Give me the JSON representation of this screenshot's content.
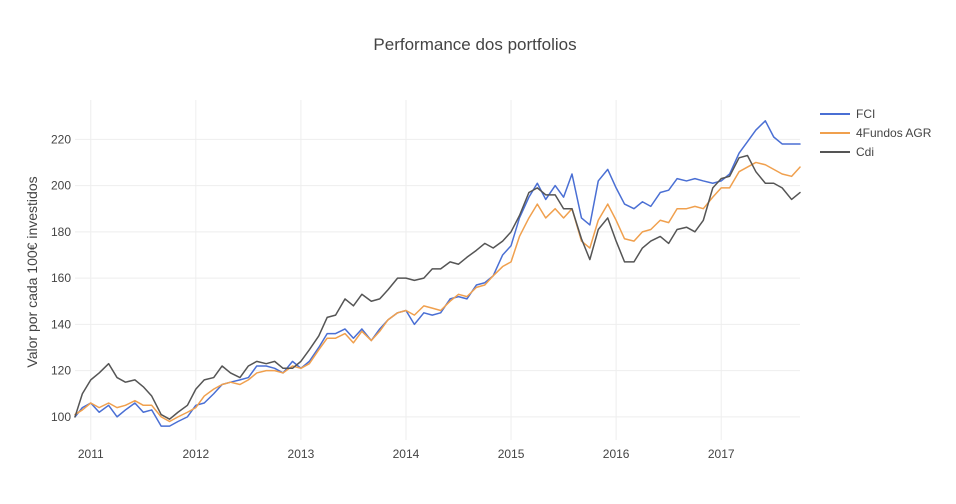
{
  "chart_data": {
    "type": "line",
    "title": "Performance dos portfolios",
    "xlabel": "",
    "ylabel": "Valor por cada 100€ investidos",
    "x_tick_labels": [
      "2011",
      "2012",
      "2013",
      "2014",
      "2015",
      "2016",
      "2017"
    ],
    "x_tick_positions": [
      2011,
      2012,
      2013,
      2014,
      2015,
      2016,
      2017
    ],
    "xlim": [
      2010.85,
      2017.75
    ],
    "y_ticks": [
      100,
      120,
      140,
      160,
      180,
      200,
      220
    ],
    "ylim": [
      90,
      237
    ],
    "legend_position": "top-right",
    "x": [
      2010.85,
      2010.92,
      2011.0,
      2011.08,
      2011.17,
      2011.25,
      2011.33,
      2011.42,
      2011.5,
      2011.58,
      2011.67,
      2011.75,
      2011.83,
      2011.92,
      2012.0,
      2012.08,
      2012.17,
      2012.25,
      2012.33,
      2012.42,
      2012.5,
      2012.58,
      2012.67,
      2012.75,
      2012.83,
      2012.92,
      2013.0,
      2013.08,
      2013.17,
      2013.25,
      2013.33,
      2013.42,
      2013.5,
      2013.58,
      2013.67,
      2013.75,
      2013.83,
      2013.92,
      2014.0,
      2014.08,
      2014.17,
      2014.25,
      2014.33,
      2014.42,
      2014.5,
      2014.58,
      2014.67,
      2014.75,
      2014.83,
      2014.92,
      2015.0,
      2015.08,
      2015.17,
      2015.25,
      2015.33,
      2015.42,
      2015.5,
      2015.58,
      2015.67,
      2015.75,
      2015.83,
      2015.92,
      2016.0,
      2016.08,
      2016.17,
      2016.25,
      2016.33,
      2016.42,
      2016.5,
      2016.58,
      2016.67,
      2016.75,
      2016.83,
      2016.92,
      2017.0,
      2017.08,
      2017.17,
      2017.25,
      2017.33,
      2017.42,
      2017.5,
      2017.58,
      2017.67,
      2017.75
    ],
    "series": [
      {
        "name": "FCI",
        "color": "#4a6fd4",
        "values": [
          100,
          104,
          106,
          102,
          105,
          100,
          103,
          106,
          102,
          103,
          96,
          96,
          98,
          100,
          105,
          106,
          110,
          114,
          115,
          116,
          117,
          122,
          122,
          121,
          119,
          124,
          121,
          124,
          130,
          136,
          136,
          138,
          134,
          138,
          133,
          138,
          142,
          145,
          146,
          140,
          145,
          144,
          145,
          151,
          152,
          151,
          157,
          158,
          161,
          170,
          174,
          186,
          195,
          201,
          194,
          200,
          195,
          205,
          186,
          183,
          202,
          207,
          199,
          192,
          190,
          193,
          191,
          197,
          198,
          203,
          202,
          203,
          202,
          201,
          202,
          205,
          214,
          219,
          224,
          228,
          221,
          218,
          218,
          218
        ]
      },
      {
        "name": "4Fundos AGR",
        "color": "#f0a04e",
        "values": [
          101,
          103,
          106,
          104,
          106,
          104,
          105,
          107,
          105,
          105,
          100,
          98,
          100,
          102,
          104,
          109,
          112,
          114,
          115,
          114,
          116,
          119,
          120,
          120,
          119,
          122,
          121,
          123,
          129,
          134,
          134,
          136,
          132,
          137,
          133,
          137,
          142,
          145,
          146,
          144,
          148,
          147,
          146,
          150,
          153,
          152,
          156,
          157,
          161,
          165,
          167,
          178,
          186,
          192,
          186,
          190,
          186,
          190,
          176,
          173,
          185,
          192,
          185,
          177,
          176,
          180,
          181,
          185,
          184,
          190,
          190,
          191,
          190,
          195,
          199,
          199,
          206,
          208,
          210,
          209,
          207,
          205,
          204,
          208
        ]
      },
      {
        "name": "Cdi",
        "color": "#555555",
        "values": [
          100,
          110,
          116,
          119,
          123,
          117,
          115,
          116,
          113,
          109,
          101,
          99,
          102,
          105,
          112,
          116,
          117,
          122,
          119,
          117,
          122,
          124,
          123,
          124,
          121,
          121,
          124,
          129,
          135,
          143,
          144,
          151,
          148,
          153,
          150,
          151,
          155,
          160,
          160,
          159,
          160,
          164,
          164,
          167,
          166,
          169,
          172,
          175,
          173,
          176,
          180,
          187,
          197,
          199,
          196,
          196,
          190,
          190,
          177,
          168,
          181,
          186,
          176,
          167,
          167,
          173,
          176,
          178,
          175,
          181,
          182,
          180,
          185,
          199,
          203,
          204,
          212,
          213,
          206,
          201,
          201,
          199,
          194,
          197
        ]
      }
    ]
  }
}
